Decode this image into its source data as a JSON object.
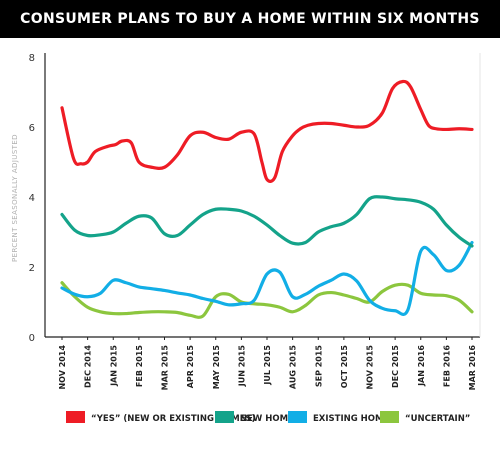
{
  "chart_data": {
    "type": "line",
    "title": "CONSUMER PLANS TO BUY A HOME WITHIN SIX MONTHS",
    "ylabel": "PERCENT SEASONALLY ADJUSTED",
    "xlabel": "",
    "ylim": [
      0,
      8
    ],
    "yticks": [
      "0",
      "2",
      "4",
      "6",
      "8"
    ],
    "grid": false,
    "legend_position": "bottom",
    "categories": [
      "NOV 2014",
      "DEC 2014",
      "JAN 2015",
      "FEB 2015",
      "MAR 2015",
      "APR 2015",
      "MAY 2015",
      "JUN 2015",
      "JUL 2015",
      "AUG 2015",
      "SEP 2015",
      "OCT 2015",
      "NOV 2015",
      "DEC 2015",
      "JAN 2016",
      "FEB 2016",
      "MAR 2016"
    ],
    "series": [
      {
        "name": "“YES” (NEW OR EXISTING HOMES)",
        "color": "#ee1c25",
        "x": [
          0.0,
          0.45,
          0.75,
          1.0,
          1.3,
          1.8,
          2.1,
          2.35,
          2.7,
          3.0,
          3.5,
          4.0,
          4.5,
          5.0,
          5.5,
          6.0,
          6.5,
          7.0,
          7.5,
          7.8,
          8.0,
          8.3,
          8.6,
          9.0,
          9.3,
          9.6,
          10.0,
          10.5,
          11.0,
          11.5,
          12.0,
          12.5,
          12.9,
          13.3,
          13.6,
          14.0,
          14.3,
          14.6,
          15.0,
          15.5,
          16.0
        ],
        "values": [
          6.55,
          5.1,
          4.95,
          5.0,
          5.3,
          5.45,
          5.5,
          5.6,
          5.55,
          5.0,
          4.85,
          4.85,
          5.2,
          5.75,
          5.85,
          5.7,
          5.65,
          5.85,
          5.8,
          5.0,
          4.5,
          4.55,
          5.3,
          5.75,
          5.95,
          6.05,
          6.1,
          6.1,
          6.05,
          6.0,
          6.05,
          6.4,
          7.1,
          7.3,
          7.15,
          6.5,
          6.05,
          5.95,
          5.93,
          5.95,
          5.93
        ]
      },
      {
        "name": "NEW HOMES",
        "color": "#14a38a",
        "x": [
          0.0,
          0.5,
          1.0,
          1.5,
          2.0,
          2.5,
          3.0,
          3.5,
          4.0,
          4.5,
          5.0,
          5.5,
          6.0,
          6.5,
          7.0,
          7.5,
          8.0,
          8.5,
          9.0,
          9.5,
          10.0,
          10.5,
          11.0,
          11.5,
          12.0,
          12.5,
          13.0,
          13.5,
          14.0,
          14.5,
          15.0,
          15.5,
          16.0
        ],
        "values": [
          3.5,
          3.05,
          2.9,
          2.92,
          3.0,
          3.25,
          3.45,
          3.4,
          2.95,
          2.9,
          3.2,
          3.5,
          3.65,
          3.65,
          3.6,
          3.45,
          3.2,
          2.9,
          2.68,
          2.7,
          3.0,
          3.15,
          3.25,
          3.5,
          3.95,
          4.0,
          3.95,
          3.92,
          3.85,
          3.65,
          3.2,
          2.85,
          2.6
        ]
      },
      {
        "name": "EXISTING HOMES",
        "color": "#12aee6",
        "x": [
          0.0,
          0.5,
          1.0,
          1.5,
          2.0,
          2.5,
          3.0,
          3.5,
          4.0,
          4.5,
          5.0,
          5.5,
          6.0,
          6.5,
          7.0,
          7.5,
          8.0,
          8.5,
          9.0,
          9.5,
          10.0,
          10.5,
          11.0,
          11.5,
          12.0,
          12.5,
          13.0,
          13.5,
          14.0,
          14.5,
          15.0,
          15.5,
          16.0
        ],
        "values": [
          1.4,
          1.22,
          1.15,
          1.25,
          1.62,
          1.55,
          1.43,
          1.38,
          1.33,
          1.26,
          1.2,
          1.1,
          1.02,
          0.92,
          0.95,
          1.05,
          1.8,
          1.85,
          1.15,
          1.22,
          1.45,
          1.62,
          1.8,
          1.6,
          1.05,
          0.82,
          0.75,
          0.78,
          2.45,
          2.35,
          1.9,
          2.05,
          2.7
        ]
      },
      {
        "name": "“UNCERTAIN”",
        "color": "#8cc63e",
        "x": [
          0.0,
          0.5,
          1.0,
          1.5,
          2.0,
          2.5,
          3.0,
          3.5,
          4.0,
          4.5,
          5.0,
          5.5,
          6.0,
          6.5,
          7.0,
          7.5,
          8.0,
          8.5,
          9.0,
          9.5,
          10.0,
          10.5,
          11.0,
          11.5,
          12.0,
          12.5,
          13.0,
          13.5,
          14.0,
          14.5,
          15.0,
          15.5,
          16.0
        ],
        "values": [
          1.55,
          1.15,
          0.85,
          0.72,
          0.67,
          0.67,
          0.7,
          0.72,
          0.72,
          0.7,
          0.62,
          0.6,
          1.15,
          1.22,
          1.0,
          0.95,
          0.92,
          0.85,
          0.72,
          0.9,
          1.2,
          1.27,
          1.2,
          1.1,
          1.0,
          1.3,
          1.48,
          1.48,
          1.25,
          1.2,
          1.18,
          1.05,
          0.72
        ]
      }
    ]
  }
}
